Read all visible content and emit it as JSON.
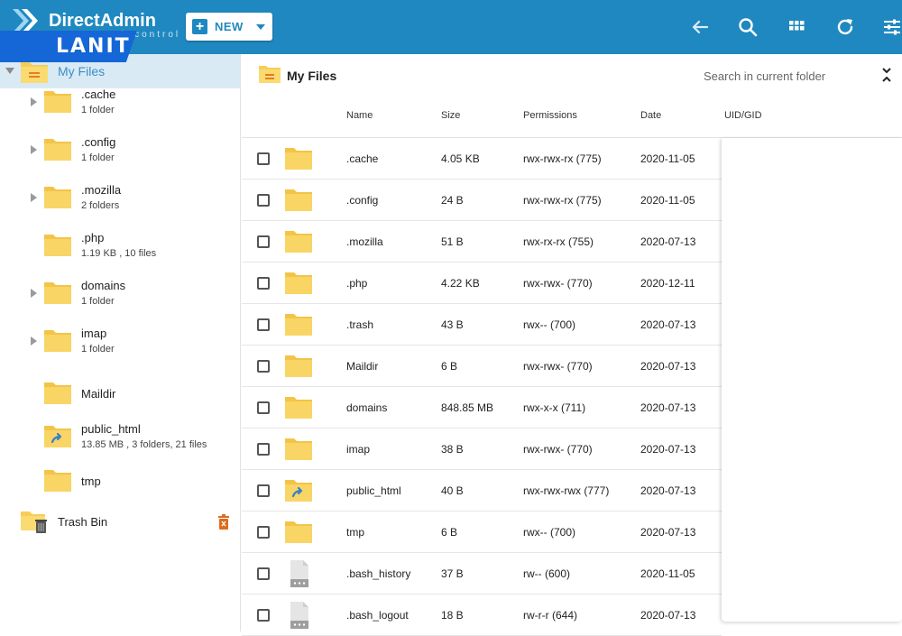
{
  "header": {
    "brand": "DirectAdmin",
    "brand_sub": "web control panel",
    "overlay_logo": "LANIT",
    "new_label": "NEW",
    "accent": "#1f88c0"
  },
  "sidebar": {
    "root_label": "My Files",
    "items": [
      {
        "name": ".cache",
        "info": "1 folder",
        "expandable": true
      },
      {
        "name": ".config",
        "info": "1 folder",
        "expandable": true
      },
      {
        "name": ".mozilla",
        "info": "2 folders",
        "expandable": true
      },
      {
        "name": ".php",
        "info": "1.19 KB , 10 files",
        "expandable": false
      },
      {
        "name": "domains",
        "info": "1 folder",
        "expandable": true
      },
      {
        "name": "imap",
        "info": "1 folder",
        "expandable": true
      },
      {
        "name": "Maildir",
        "info": "",
        "expandable": false
      },
      {
        "name": "public_html",
        "info": "13.85 MB , 3 folders, 21 files",
        "expandable": false
      },
      {
        "name": "tmp",
        "info": "",
        "expandable": false
      }
    ],
    "trash_label": "Trash Bin"
  },
  "main": {
    "title": "My Files",
    "search_placeholder": "Search in current folder",
    "columns": {
      "name": "Name",
      "size": "Size",
      "permissions": "Permissions",
      "date": "Date",
      "uid": "UID/GID"
    },
    "rows": [
      {
        "name": ".cache",
        "size": "4.05 KB",
        "perm": "rwx-rwx-rx (775)",
        "date": "2020-11-05",
        "type": "folder"
      },
      {
        "name": ".config",
        "size": "24 B",
        "perm": "rwx-rwx-rx (775)",
        "date": "2020-11-05",
        "type": "folder"
      },
      {
        "name": ".mozilla",
        "size": "51 B",
        "perm": "rwx-rx-rx (755)",
        "date": "2020-07-13",
        "type": "folder"
      },
      {
        "name": ".php",
        "size": "4.22 KB",
        "perm": "rwx-rwx- (770)",
        "date": "2020-12-11",
        "type": "folder"
      },
      {
        "name": ".trash",
        "size": "43 B",
        "perm": "rwx-- (700)",
        "date": "2020-07-13",
        "type": "folder"
      },
      {
        "name": "Maildir",
        "size": "6 B",
        "perm": "rwx-rwx- (770)",
        "date": "2020-07-13",
        "type": "folder"
      },
      {
        "name": "domains",
        "size": "848.85 MB",
        "perm": "rwx-x-x (711)",
        "date": "2020-07-13",
        "type": "folder"
      },
      {
        "name": "imap",
        "size": "38 B",
        "perm": "rwx-rwx- (770)",
        "date": "2020-07-13",
        "type": "folder"
      },
      {
        "name": "public_html",
        "size": "40 B",
        "perm": "rwx-rwx-rwx (777)",
        "date": "2020-07-13",
        "type": "folder-link"
      },
      {
        "name": "tmp",
        "size": "6 B",
        "perm": "rwx-- (700)",
        "date": "2020-07-13",
        "type": "folder"
      },
      {
        "name": ".bash_history",
        "size": "37 B",
        "perm": "rw-- (600)",
        "date": "2020-11-05",
        "type": "file"
      },
      {
        "name": ".bash_logout",
        "size": "18 B",
        "perm": "rw-r-r (644)",
        "date": "2020-07-13",
        "type": "file"
      }
    ]
  }
}
